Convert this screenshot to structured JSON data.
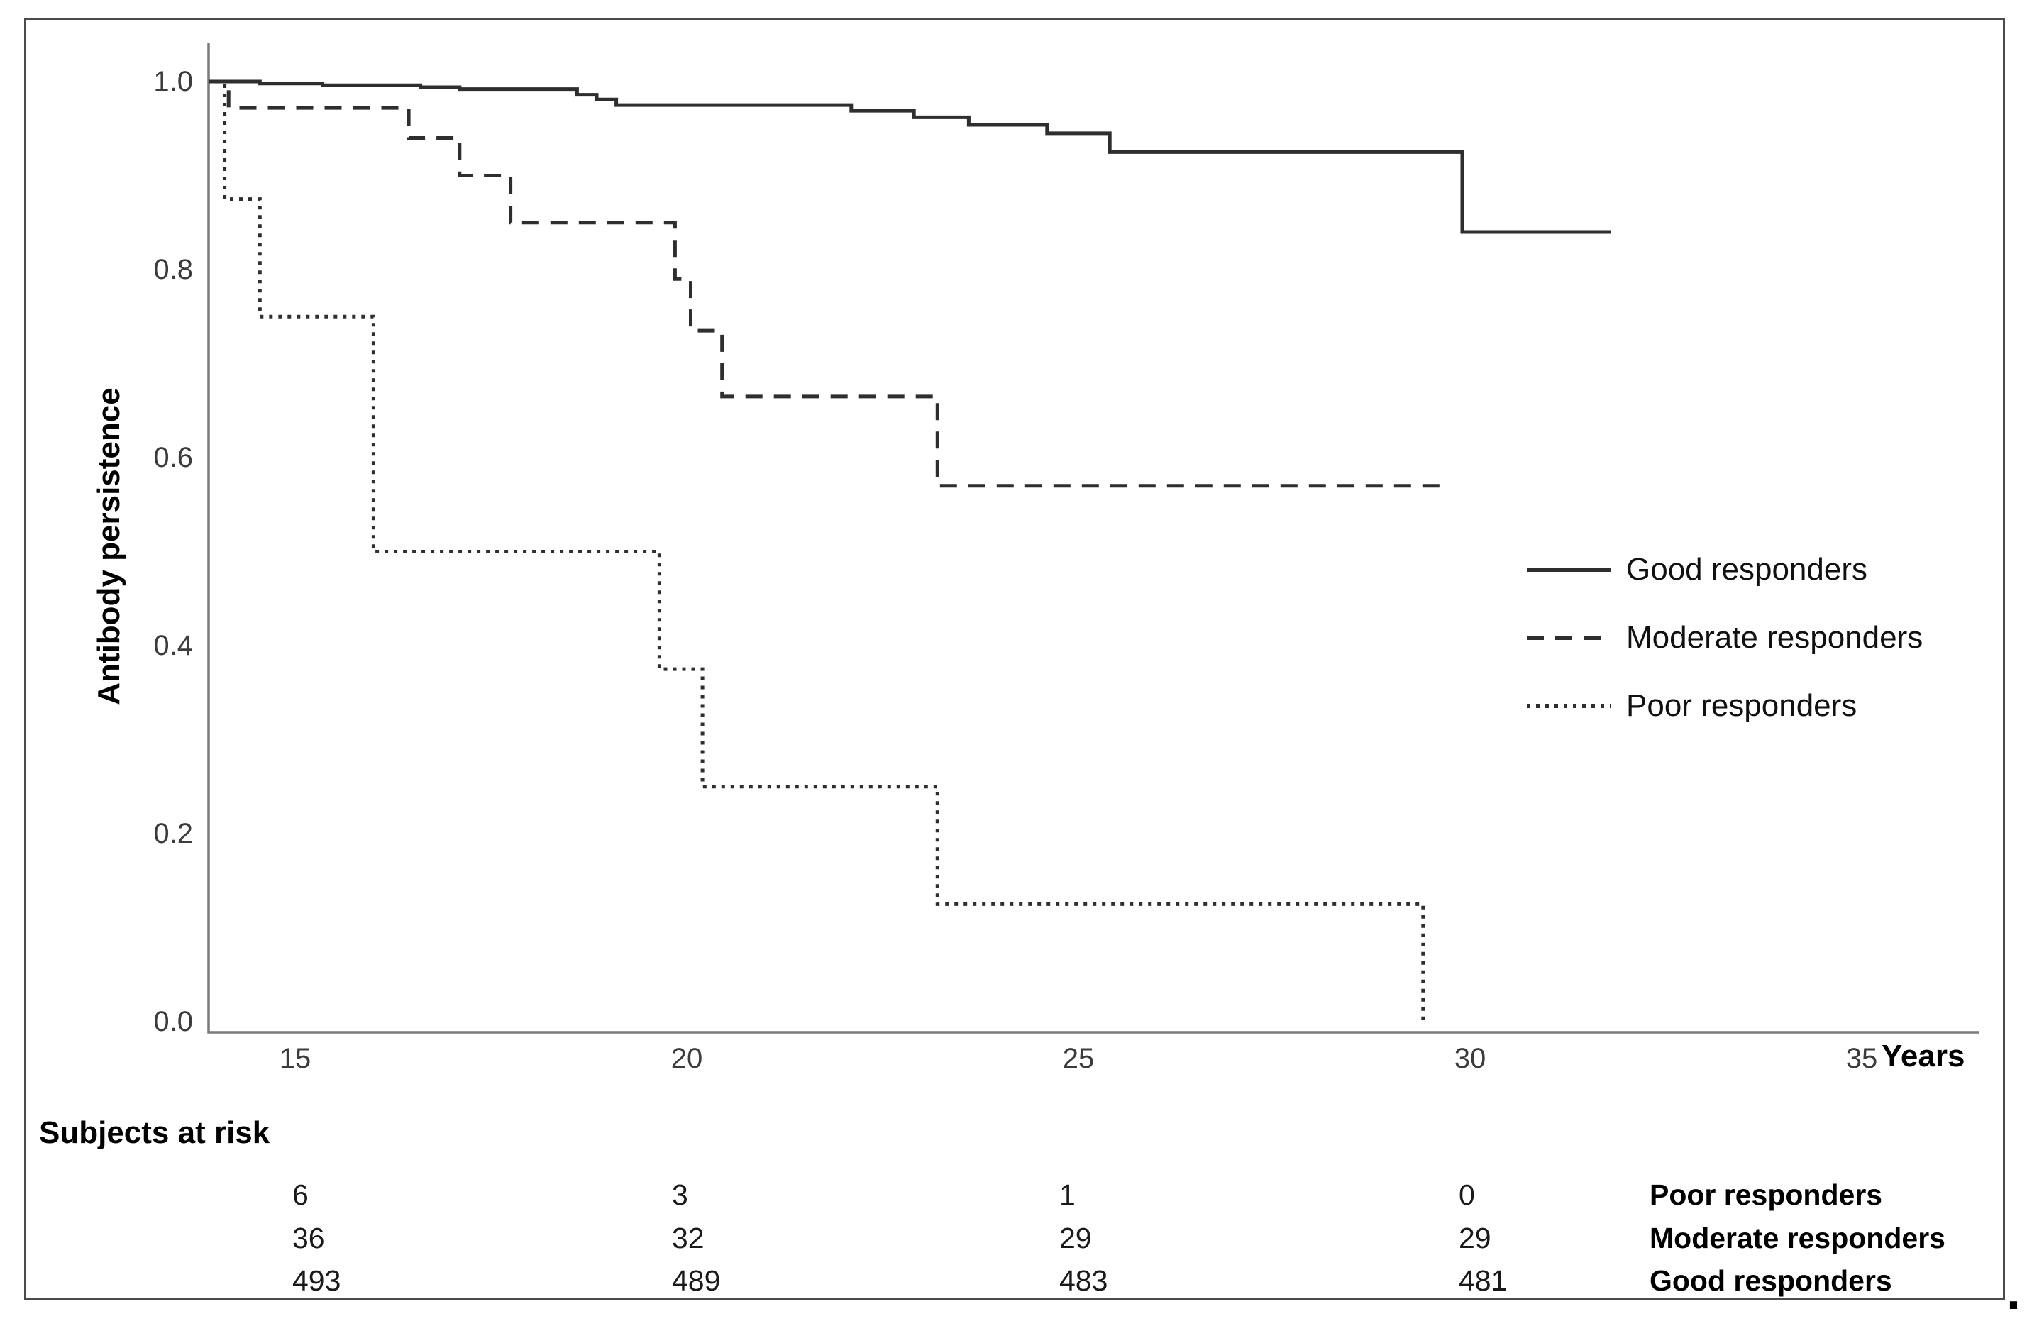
{
  "chart_data": {
    "type": "line",
    "subtype": "kaplan-meier-step-curves",
    "title": "",
    "xlabel": "Years",
    "ylabel": "Antibody persistence",
    "grid": false,
    "x_axis": {
      "ticks": [
        15,
        20,
        25,
        30,
        35
      ],
      "tick_labels": [
        "15",
        "20",
        "25",
        "30",
        "35"
      ],
      "range": [
        13.9,
        35.9
      ]
    },
    "y_axis": {
      "ticks": [
        1.0,
        0.8,
        0.6,
        0.4,
        0.2,
        0.0
      ],
      "tick_labels": [
        "1.0",
        "0.8",
        "0.6",
        "0.4",
        "0.2",
        "0.0"
      ],
      "range": [
        0.0,
        1.0
      ]
    },
    "legend": {
      "position": "right-middle"
    },
    "series": [
      {
        "name": "Good responders",
        "line_style": "solid",
        "steps": [
          [
            13.9,
            1.0
          ],
          [
            14.55,
            0.998
          ],
          [
            15.35,
            0.996
          ],
          [
            16.6,
            0.994
          ],
          [
            17.1,
            0.992
          ],
          [
            18.6,
            0.986
          ],
          [
            18.85,
            0.981
          ],
          [
            19.1,
            0.975
          ],
          [
            22.1,
            0.969
          ],
          [
            22.9,
            0.962
          ],
          [
            23.6,
            0.954
          ],
          [
            24.6,
            0.945
          ],
          [
            25.4,
            0.925
          ],
          [
            29.9,
            0.84
          ]
        ],
        "end_x": 31.8
      },
      {
        "name": "Moderate responders",
        "line_style": "dashed",
        "steps": [
          [
            13.9,
            1.0
          ],
          [
            14.15,
            0.972
          ],
          [
            16.45,
            0.94
          ],
          [
            17.1,
            0.9
          ],
          [
            17.75,
            0.85
          ],
          [
            19.85,
            0.79
          ],
          [
            20.05,
            0.735
          ],
          [
            20.45,
            0.665
          ],
          [
            23.2,
            0.57
          ]
        ],
        "end_x": 29.7
      },
      {
        "name": "Poor responders",
        "line_style": "dotted",
        "steps": [
          [
            13.9,
            1.0
          ],
          [
            14.1,
            0.875
          ],
          [
            14.55,
            0.75
          ],
          [
            16.0,
            0.5
          ],
          [
            19.65,
            0.375
          ],
          [
            20.2,
            0.25
          ],
          [
            23.2,
            0.125
          ],
          [
            29.4,
            0.0
          ]
        ],
        "end_x": 29.4
      }
    ]
  },
  "at_risk": {
    "title": "Subjects at risk",
    "rows": [
      {
        "label": "Poor responders",
        "values": [
          "6",
          "3",
          "1",
          "0"
        ]
      },
      {
        "label": "Moderate responders",
        "values": [
          "36",
          "32",
          "29",
          "29"
        ]
      },
      {
        "label": "Good responders",
        "values": [
          "493",
          "489",
          "483",
          "481"
        ]
      }
    ]
  },
  "misc": {
    "trailing_period": "."
  },
  "colors": {
    "line": "#2e2e2e",
    "axis": "#7a7a7a",
    "text": "#000000",
    "frame": "#4b4b4b",
    "background": "#ffffff"
  }
}
